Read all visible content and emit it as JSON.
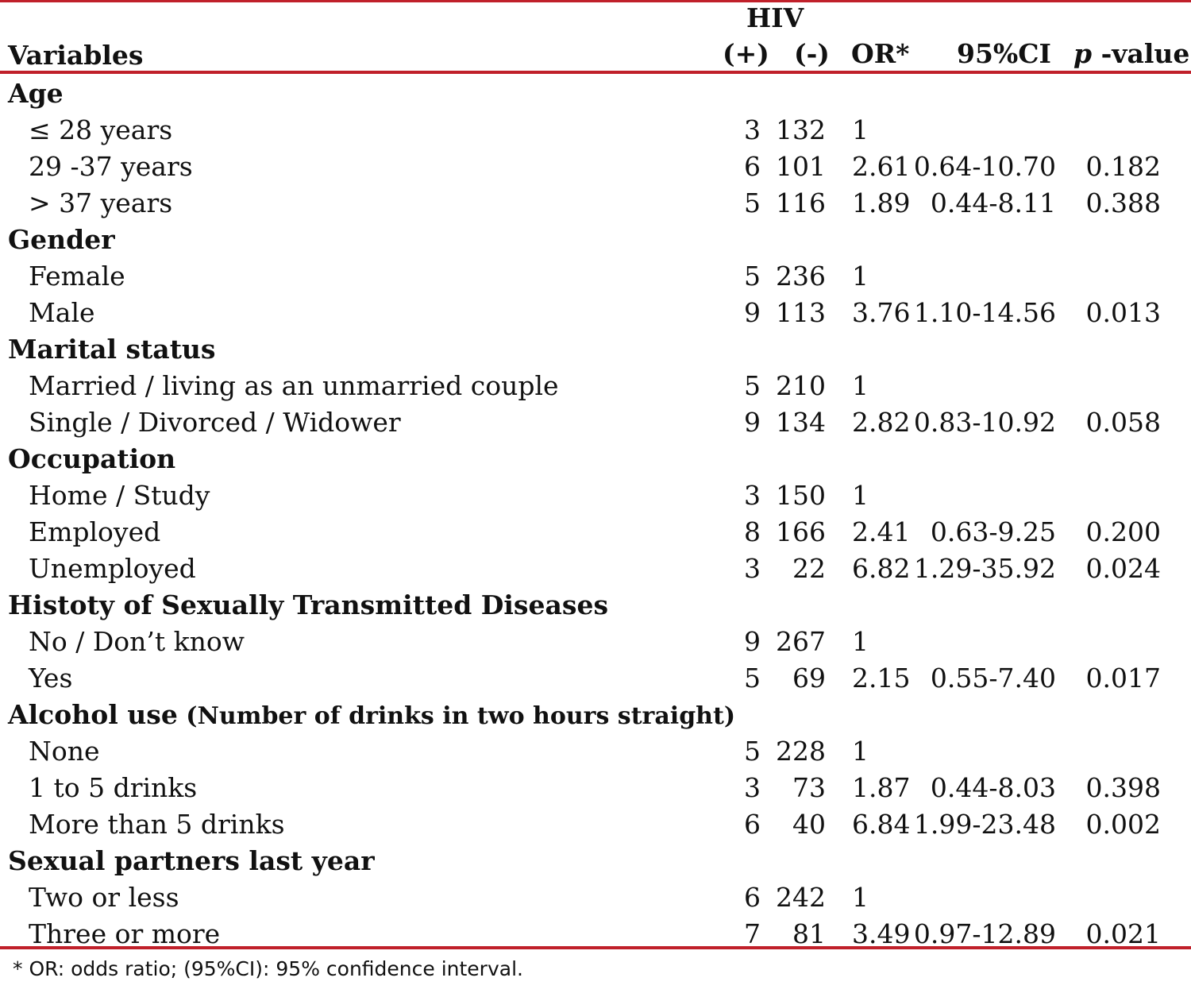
{
  "header": {
    "group_label": "HIV",
    "variables": "Variables",
    "positive": "(+)",
    "negative": "(-)",
    "or": "OR*",
    "ci": "95%CI",
    "p_italic": "p",
    "p_rest": " -value"
  },
  "rows": [
    {
      "type": "cat",
      "label": "Age",
      "pos": "",
      "neg": "",
      "or": "",
      "ci": "",
      "p": ""
    },
    {
      "type": "sub",
      "label": "≤ 28 years",
      "pos": "3",
      "neg": "132",
      "or": "1",
      "ci": "",
      "p": ""
    },
    {
      "type": "sub",
      "label": "29 -37 years",
      "pos": "6",
      "neg": "101",
      "or": "2.61",
      "ci": "0.64-10.70",
      "p": "0.182"
    },
    {
      "type": "sub",
      "label": "> 37 years",
      "pos": "5",
      "neg": "116",
      "or": "1.89",
      "ci": "0.44-8.11",
      "p": "0.388"
    },
    {
      "type": "cat",
      "label": "Gender",
      "pos": "",
      "neg": "",
      "or": "",
      "ci": "",
      "p": ""
    },
    {
      "type": "sub",
      "label": "Female",
      "pos": "5",
      "neg": "236",
      "or": "1",
      "ci": "",
      "p": ""
    },
    {
      "type": "sub",
      "label": "Male",
      "pos": "9",
      "neg": "113",
      "or": "3.76",
      "ci": "1.10-14.56",
      "p": "0.013"
    },
    {
      "type": "cat",
      "label": "Marital status",
      "pos": "",
      "neg": "",
      "or": "",
      "ci": "",
      "p": ""
    },
    {
      "type": "sub",
      "label": "Married / living as an unmarried couple",
      "pos": "5",
      "neg": "210",
      "or": "1",
      "ci": "",
      "p": ""
    },
    {
      "type": "sub",
      "label": "Single / Divorced / Widower",
      "pos": "9",
      "neg": "134",
      "or": "2.82",
      "ci": "0.83-10.92",
      "p": "0.058"
    },
    {
      "type": "cat",
      "label": "Occupation",
      "pos": "",
      "neg": "",
      "or": "",
      "ci": "",
      "p": ""
    },
    {
      "type": "sub",
      "label": "Home / Study",
      "pos": "3",
      "neg": "150",
      "or": "1",
      "ci": "",
      "p": ""
    },
    {
      "type": "sub",
      "label": "Employed",
      "pos": "8",
      "neg": "166",
      "or": "2.41",
      "ci": "0.63-9.25",
      "p": "0.200"
    },
    {
      "type": "sub",
      "label": "Unemployed",
      "pos": "3",
      "neg": "22",
      "or": "6.82",
      "ci": "1.29-35.92",
      "p": "0.024"
    },
    {
      "type": "cat",
      "label": "Histoty of Sexually Transmitted Diseases",
      "pos": "",
      "neg": "",
      "or": "",
      "ci": "",
      "p": ""
    },
    {
      "type": "sub",
      "label": "No / Don’t know",
      "pos": "9",
      "neg": "267",
      "or": "1",
      "ci": "",
      "p": ""
    },
    {
      "type": "sub",
      "label": "Yes",
      "pos": "5",
      "neg": "69",
      "or": "2.15",
      "ci": "0.55-7.40",
      "p": "0.017"
    },
    {
      "type": "cat",
      "label": "Alcohol use",
      "label_note": " (Number of drinks in two hours straight)",
      "pos": "",
      "neg": "",
      "or": "",
      "ci": "",
      "p": ""
    },
    {
      "type": "sub",
      "label": "None",
      "pos": "5",
      "neg": "228",
      "or": "1",
      "ci": "",
      "p": ""
    },
    {
      "type": "sub",
      "label": "1 to 5 drinks",
      "pos": "3",
      "neg": "73",
      "or": "1.87",
      "ci": "0.44-8.03",
      "p": "0.398"
    },
    {
      "type": "sub",
      "label": "More than 5 drinks",
      "pos": "6",
      "neg": "40",
      "or": "6.84",
      "ci": "1.99-23.48",
      "p": "0.002"
    },
    {
      "type": "cat",
      "label": "Sexual partners last year",
      "pos": "",
      "neg": "",
      "or": "",
      "ci": "",
      "p": ""
    },
    {
      "type": "sub",
      "label": "Two or less",
      "pos": "6",
      "neg": "242",
      "or": "1",
      "ci": "",
      "p": ""
    },
    {
      "type": "sub",
      "label": "Three or more",
      "pos": "7",
      "neg": "81",
      "or": "3.49",
      "ci": "0.97-12.89",
      "p": "0.021"
    }
  ],
  "footnote": "* OR: odds ratio; (95%CI): 95% confidence interval.",
  "colors": {
    "rule": "#c0202a",
    "text": "#111111"
  }
}
